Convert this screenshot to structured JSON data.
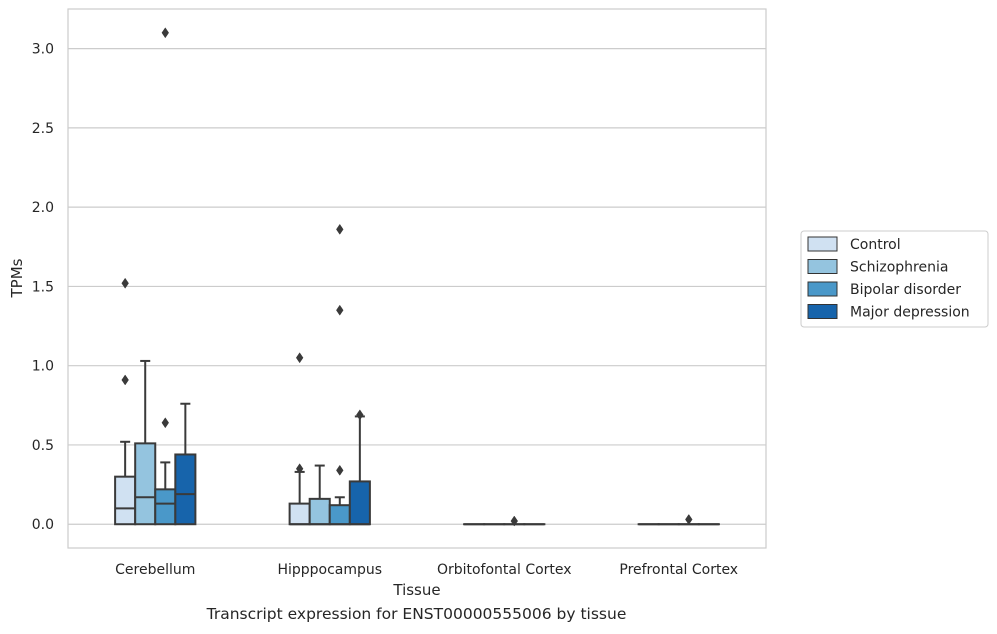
{
  "caption": "Transcript expression for ENST00000555006 by tissue",
  "chart_data": {
    "type": "box",
    "xlabel": "Tissue",
    "ylabel": "TPMs",
    "ylim": [
      -0.15,
      3.25
    ],
    "yticks": [
      "0.0",
      "0.5",
      "1.0",
      "1.5",
      "2.0",
      "2.5",
      "3.0"
    ],
    "grid": "horizontal",
    "legend_position": "right",
    "categories": [
      "Cerebellum",
      "Hipppocampus",
      "Orbitofontal Cortex",
      "Prefrontal Cortex"
    ],
    "series": [
      {
        "name": "Control",
        "color": "#d0e1f2",
        "boxes": [
          {
            "q1": 0.0,
            "median": 0.1,
            "q3": 0.3,
            "whisker_low": 0.0,
            "whisker_high": 0.52,
            "outliers": [
              0.91,
              1.52
            ]
          },
          {
            "q1": 0.0,
            "median": 0.0,
            "q3": 0.13,
            "whisker_low": 0.0,
            "whisker_high": 0.33,
            "outliers": [
              0.35,
              1.05
            ]
          },
          {
            "q1": 0.0,
            "median": 0.0,
            "q3": 0.0,
            "whisker_low": 0.0,
            "whisker_high": 0.0,
            "outliers": []
          },
          {
            "q1": 0.0,
            "median": 0.0,
            "q3": 0.0,
            "whisker_low": 0.0,
            "whisker_high": 0.0,
            "outliers": []
          }
        ]
      },
      {
        "name": "Schizophrenia",
        "color": "#94c4df",
        "boxes": [
          {
            "q1": 0.0,
            "median": 0.17,
            "q3": 0.51,
            "whisker_low": 0.0,
            "whisker_high": 1.03,
            "outliers": []
          },
          {
            "q1": 0.0,
            "median": 0.0,
            "q3": 0.16,
            "whisker_low": 0.0,
            "whisker_high": 0.37,
            "outliers": []
          },
          {
            "q1": 0.0,
            "median": 0.0,
            "q3": 0.0,
            "whisker_low": 0.0,
            "whisker_high": 0.0,
            "outliers": []
          },
          {
            "q1": 0.0,
            "median": 0.0,
            "q3": 0.0,
            "whisker_low": 0.0,
            "whisker_high": 0.0,
            "outliers": []
          }
        ]
      },
      {
        "name": "Bipolar disorder",
        "color": "#4a98c9",
        "boxes": [
          {
            "q1": 0.0,
            "median": 0.13,
            "q3": 0.22,
            "whisker_low": 0.0,
            "whisker_high": 0.39,
            "outliers": [
              0.64,
              3.1
            ]
          },
          {
            "q1": 0.0,
            "median": 0.0,
            "q3": 0.12,
            "whisker_low": 0.0,
            "whisker_high": 0.17,
            "outliers": [
              0.34,
              1.35,
              1.86
            ]
          },
          {
            "q1": 0.0,
            "median": 0.0,
            "q3": 0.0,
            "whisker_low": 0.0,
            "whisker_high": 0.0,
            "outliers": [
              0.02
            ]
          },
          {
            "q1": 0.0,
            "median": 0.0,
            "q3": 0.0,
            "whisker_low": 0.0,
            "whisker_high": 0.0,
            "outliers": [
              0.03
            ]
          }
        ]
      },
      {
        "name": "Major depression",
        "color": "#1764ab",
        "boxes": [
          {
            "q1": 0.0,
            "median": 0.19,
            "q3": 0.44,
            "whisker_low": 0.0,
            "whisker_high": 0.76,
            "outliers": []
          },
          {
            "q1": 0.0,
            "median": 0.0,
            "q3": 0.27,
            "whisker_low": 0.0,
            "whisker_high": 0.68,
            "outliers": [
              0.69
            ]
          },
          {
            "q1": 0.0,
            "median": 0.0,
            "q3": 0.0,
            "whisker_low": 0.0,
            "whisker_high": 0.0,
            "outliers": []
          },
          {
            "q1": 0.0,
            "median": 0.0,
            "q3": 0.0,
            "whisker_low": 0.0,
            "whisker_high": 0.0,
            "outliers": []
          }
        ]
      }
    ]
  }
}
